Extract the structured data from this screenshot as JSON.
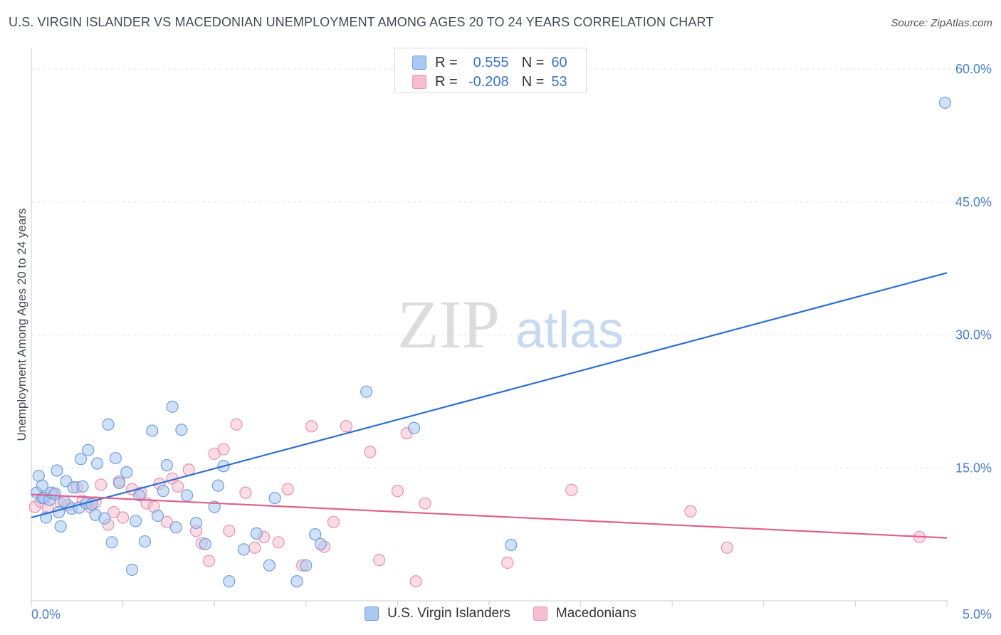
{
  "title": "U.S. VIRGIN ISLANDER VS MACEDONIAN UNEMPLOYMENT AMONG AGES 20 TO 24 YEARS CORRELATION CHART",
  "source": "Source: ZipAtlas.com",
  "watermark": {
    "zip": "ZIP",
    "atlas": "atlas"
  },
  "legend": {
    "series": [
      {
        "r_label": "R =",
        "r_value": "0.555",
        "n_label": "N =",
        "n_value": "60"
      },
      {
        "r_label": "R =",
        "r_value": "-0.208",
        "n_label": "N =",
        "n_value": "53"
      }
    ]
  },
  "colors": {
    "blue_fill": "#aac8f0",
    "blue_stroke": "#6f9ee0",
    "blue_line": "#2f6fd0",
    "pink_fill": "#f5bfd0",
    "pink_stroke": "#eb90ad",
    "pink_line": "#e0608c",
    "tick_text": "#4a7fd0"
  },
  "chart_data": {
    "type": "scatter",
    "title": "U.S. VIRGIN ISLANDER VS MACEDONIAN UNEMPLOYMENT AMONG AGES 20 TO 24 YEARS CORRELATION CHART",
    "xlabel": "",
    "ylabel": "Unemployment Among Ages 20 to 24 years",
    "xlim": [
      0,
      5
    ],
    "ylim": [
      0,
      60
    ],
    "x_tick_labels": [
      "0.0%",
      "5.0%"
    ],
    "y_tick_labels": [
      "15.0%",
      "30.0%",
      "45.0%",
      "60.0%"
    ],
    "y_ticks": [
      15,
      30,
      45,
      60
    ],
    "grid": true,
    "legend_position": "top-center",
    "series": [
      {
        "name": "U.S. Virgin Islanders",
        "trend": {
          "x": [
            0,
            5
          ],
          "y": [
            9.4,
            37.0
          ]
        },
        "points": [
          [
            0.03,
            12.2
          ],
          [
            0.04,
            14.1
          ],
          [
            0.06,
            13.0
          ],
          [
            0.06,
            11.6
          ],
          [
            0.07,
            11.6
          ],
          [
            0.08,
            9.4
          ],
          [
            0.1,
            11.4
          ],
          [
            0.11,
            12.2
          ],
          [
            0.13,
            12.1
          ],
          [
            0.14,
            14.7
          ],
          [
            0.15,
            10.0
          ],
          [
            0.16,
            8.4
          ],
          [
            0.18,
            11.2
          ],
          [
            0.19,
            13.5
          ],
          [
            0.22,
            10.4
          ],
          [
            0.23,
            12.8
          ],
          [
            0.26,
            10.5
          ],
          [
            0.27,
            16.0
          ],
          [
            0.28,
            12.9
          ],
          [
            0.3,
            11.0
          ],
          [
            0.31,
            17.0
          ],
          [
            0.33,
            10.9
          ],
          [
            0.35,
            9.7
          ],
          [
            0.36,
            15.5
          ],
          [
            0.4,
            9.3
          ],
          [
            0.42,
            19.9
          ],
          [
            0.44,
            6.6
          ],
          [
            0.46,
            16.1
          ],
          [
            0.48,
            13.3
          ],
          [
            0.52,
            14.5
          ],
          [
            0.55,
            3.5
          ],
          [
            0.57,
            9.0
          ],
          [
            0.59,
            11.9
          ],
          [
            0.62,
            6.7
          ],
          [
            0.66,
            19.2
          ],
          [
            0.69,
            9.6
          ],
          [
            0.72,
            12.4
          ],
          [
            0.74,
            15.3
          ],
          [
            0.77,
            21.9
          ],
          [
            0.79,
            8.3
          ],
          [
            0.82,
            19.3
          ],
          [
            0.85,
            11.9
          ],
          [
            1.0,
            10.6
          ],
          [
            0.9,
            8.8
          ],
          [
            0.95,
            6.4
          ],
          [
            1.02,
            13.0
          ],
          [
            1.05,
            15.2
          ],
          [
            1.08,
            2.2
          ],
          [
            1.16,
            5.8
          ],
          [
            1.23,
            7.6
          ],
          [
            1.33,
            11.6
          ],
          [
            1.3,
            4.0
          ],
          [
            1.45,
            2.2
          ],
          [
            1.55,
            7.5
          ],
          [
            1.5,
            4.0
          ],
          [
            1.58,
            6.4
          ],
          [
            1.83,
            23.6
          ],
          [
            2.09,
            19.5
          ],
          [
            2.62,
            6.3
          ],
          [
            4.99,
            56.2
          ]
        ]
      },
      {
        "name": "Macedonians",
        "trend": {
          "x": [
            0,
            5
          ],
          "y": [
            12.0,
            7.1
          ]
        },
        "points": [
          [
            0.02,
            10.6
          ],
          [
            0.05,
            11.2
          ],
          [
            0.07,
            11.6
          ],
          [
            0.09,
            10.5
          ],
          [
            0.12,
            12.0
          ],
          [
            0.16,
            11.0
          ],
          [
            0.2,
            10.8
          ],
          [
            0.25,
            12.8
          ],
          [
            0.28,
            11.3
          ],
          [
            0.32,
            10.6
          ],
          [
            0.35,
            11.1
          ],
          [
            0.38,
            13.1
          ],
          [
            0.42,
            8.6
          ],
          [
            0.45,
            10.0
          ],
          [
            0.48,
            13.5
          ],
          [
            0.5,
            9.4
          ],
          [
            0.55,
            12.6
          ],
          [
            0.6,
            12.2
          ],
          [
            0.63,
            11.0
          ],
          [
            0.67,
            10.6
          ],
          [
            0.7,
            13.2
          ],
          [
            0.74,
            8.9
          ],
          [
            0.77,
            13.8
          ],
          [
            0.8,
            12.9
          ],
          [
            0.86,
            14.8
          ],
          [
            0.9,
            7.9
          ],
          [
            0.93,
            6.5
          ],
          [
            0.97,
            4.5
          ],
          [
            1.0,
            16.6
          ],
          [
            1.05,
            17.1
          ],
          [
            1.08,
            7.9
          ],
          [
            1.12,
            19.9
          ],
          [
            1.17,
            12.2
          ],
          [
            1.22,
            6.0
          ],
          [
            1.27,
            7.2
          ],
          [
            1.35,
            6.6
          ],
          [
            1.4,
            12.6
          ],
          [
            1.48,
            4.0
          ],
          [
            1.53,
            19.7
          ],
          [
            1.6,
            6.1
          ],
          [
            1.65,
            8.9
          ],
          [
            1.72,
            19.7
          ],
          [
            1.85,
            16.8
          ],
          [
            1.9,
            4.6
          ],
          [
            2.0,
            12.4
          ],
          [
            2.05,
            18.9
          ],
          [
            2.1,
            2.2
          ],
          [
            2.15,
            11.0
          ],
          [
            2.6,
            4.3
          ],
          [
            2.95,
            12.5
          ],
          [
            3.6,
            10.1
          ],
          [
            3.8,
            6.0
          ],
          [
            4.85,
            7.2
          ]
        ]
      }
    ]
  },
  "bottom_legend": [
    "U.S. Virgin Islanders",
    "Macedonians"
  ]
}
